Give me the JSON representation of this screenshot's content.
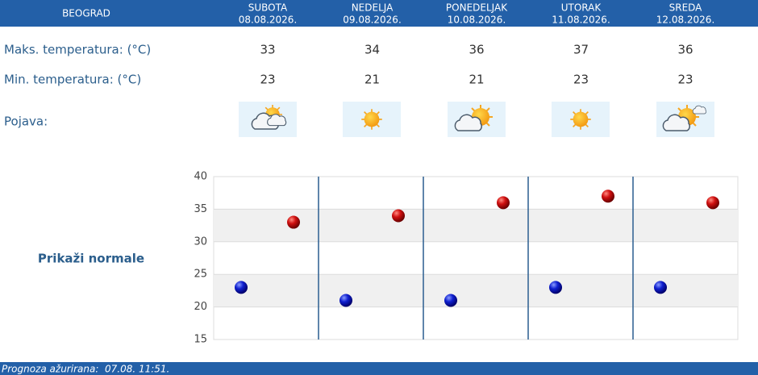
{
  "header": {
    "city": "BEOGRAD"
  },
  "days": [
    {
      "name": "SUBOTA",
      "date": "08.08.2026."
    },
    {
      "name": "NEDELJA",
      "date": "09.08.2026."
    },
    {
      "name": "PONEDELJAK",
      "date": "10.08.2026."
    },
    {
      "name": "UTORAK",
      "date": "11.08.2026."
    },
    {
      "name": "SREDA",
      "date": "12.08.2026."
    }
  ],
  "rows": {
    "max_label": "Maks. temperatura: (°C)",
    "min_label": "Min. temperatura: (°C)",
    "phenomenon_label": "Pojava:"
  },
  "forecast": {
    "max": [
      33,
      34,
      36,
      37,
      36
    ],
    "min": [
      23,
      21,
      21,
      23,
      23
    ]
  },
  "chart": {
    "ylim": [
      15,
      40
    ],
    "yticks": [
      15,
      20,
      25,
      30,
      35,
      40
    ]
  },
  "normals_link": "Prikaži normale",
  "footer": {
    "updated": "Prognoza ažurirana:  07.08. 11:51."
  }
}
